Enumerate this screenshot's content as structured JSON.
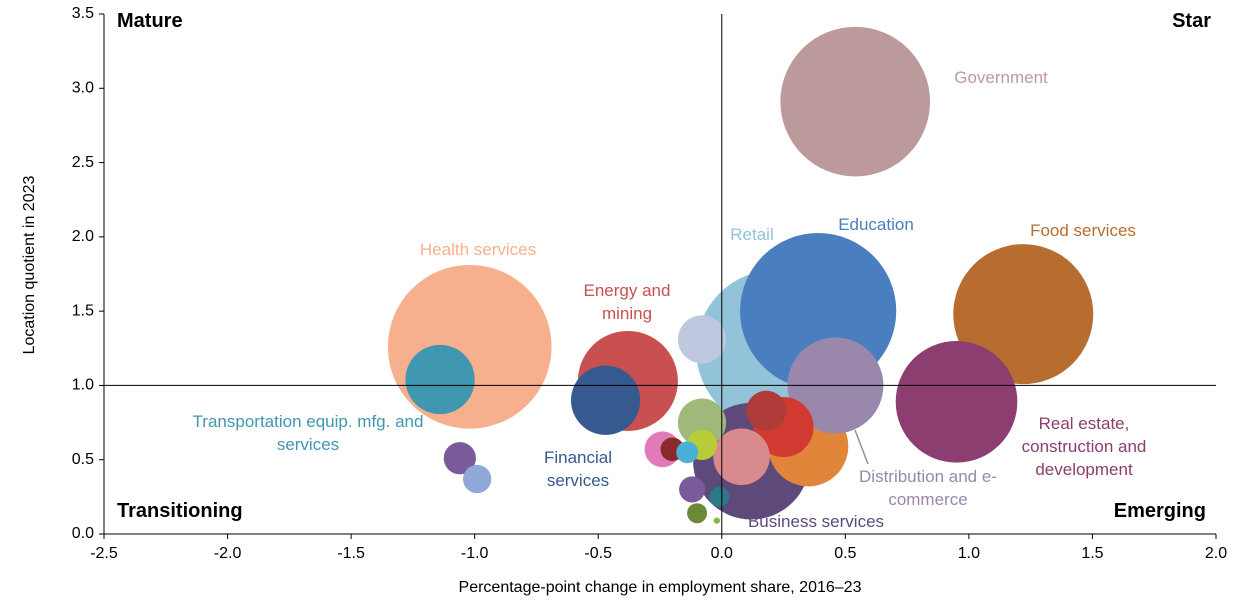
{
  "chart_data": {
    "type": "bubble",
    "xlabel": "Percentage-point change in employment share, 2016–23",
    "ylabel": "Location quotient in 2023",
    "xlim": [
      -2.5,
      2.0
    ],
    "ylim": [
      0,
      3.5
    ],
    "xticks": [
      -2.5,
      {
        "value": -2,
        "label": "-2.0"
      },
      -1.5,
      {
        "value": -1,
        "label": "-1.0"
      },
      -0.5,
      {
        "value": 0,
        "label": "0.0"
      },
      0.5,
      {
        "value": 1,
        "label": "1.0"
      },
      1.5,
      {
        "value": 2,
        "label": "2.0"
      }
    ],
    "yticks": [
      {
        "value": 0,
        "label": "0.0"
      },
      0.5,
      {
        "value": 1,
        "label": "1.0"
      },
      1.5,
      {
        "value": 2,
        "label": "2.0"
      },
      2.5,
      {
        "value": 3,
        "label": "3.0"
      },
      3.5
    ],
    "quadrant_x": 0,
    "quadrant_y": 1,
    "quadrants": [
      "Mature",
      "Star",
      "Transitioning",
      "Emerging"
    ],
    "points": [
      {
        "name": "Government",
        "color": "#bc9a9c",
        "x": 0.54,
        "y": 2.91,
        "size": 56
      },
      {
        "name": "Health services",
        "color": "#f7b08d",
        "x": -1.02,
        "y": 1.26,
        "size": 67
      },
      {
        "name": "Transportation equip. mfg. and services",
        "color": "#3f97b0",
        "x": -1.14,
        "y": 1.04,
        "size": 12
      },
      {
        "name": "Food services",
        "color": "#b86d30",
        "x": 1.22,
        "y": 1.48,
        "size": 49
      },
      {
        "name": "Retail",
        "color": "#92c3d8",
        "x": 0.22,
        "y": 1.24,
        "size": 64
      },
      {
        "name": "Education",
        "color": "#4a7fbf",
        "x": 0.39,
        "y": 1.5,
        "size": 61
      },
      {
        "name": "Real estate, construction and development",
        "color": "#8b3e6f",
        "x": 0.95,
        "y": 0.89,
        "size": 37
      },
      {
        "name": "Energy and mining",
        "color": "#c85050",
        "x": -0.38,
        "y": 1.03,
        "size": 25
      },
      {
        "name": "Financial services",
        "color": "#36598f",
        "x": -0.47,
        "y": 0.9,
        "size": 12
      },
      {
        "name": "Business services",
        "color": "#5d4a7a",
        "x": 0.12,
        "y": 0.49,
        "size": 34
      },
      {
        "color": "#e0853a",
        "x": 0.35,
        "y": 0.59,
        "size": 16
      },
      {
        "name": "Distribution and e-commerce",
        "color": "#9a88ac",
        "x": 0.46,
        "y": 1.0,
        "size": 23
      },
      {
        "color": "#d03a30",
        "x": 0.25,
        "y": 0.72,
        "size": 9
      },
      {
        "color": "#b03c3a",
        "x": 0.18,
        "y": 0.83,
        "size": 4
      },
      {
        "color": "#d88a8c",
        "x": 0.08,
        "y": 0.52,
        "size": 8
      },
      {
        "color": "#a0b87a",
        "x": -0.08,
        "y": 0.75,
        "size": 5.8
      },
      {
        "color": "#b8cc3a",
        "x": -0.08,
        "y": 0.6,
        "size": 2.3
      },
      {
        "color": "#e07ab8",
        "x": -0.24,
        "y": 0.57,
        "size": 3.2
      },
      {
        "color": "#8b2a2a",
        "x": -0.2,
        "y": 0.57,
        "size": 1.4
      },
      {
        "color": "#4ab0d8",
        "x": -0.14,
        "y": 0.55,
        "size": 1.2
      },
      {
        "color": "#c0c8e0",
        "x": -0.08,
        "y": 1.31,
        "size": 5.8
      },
      {
        "color": "#7a5a9a",
        "x": -1.06,
        "y": 0.51,
        "size": 2.6
      },
      {
        "color": "#8fa8d8",
        "x": -0.99,
        "y": 0.37,
        "size": 2
      },
      {
        "color": "#7a5a9a",
        "x": -0.12,
        "y": 0.3,
        "size": 1.7
      },
      {
        "color": "#2a7a8a",
        "x": -0.01,
        "y": 0.25,
        "size": 1
      },
      {
        "color": "#6a8a3a",
        "x": -0.1,
        "y": 0.14,
        "size": 1
      },
      {
        "color": "#8ab84a",
        "x": -0.02,
        "y": 0.09,
        "size": 0.1
      }
    ]
  }
}
